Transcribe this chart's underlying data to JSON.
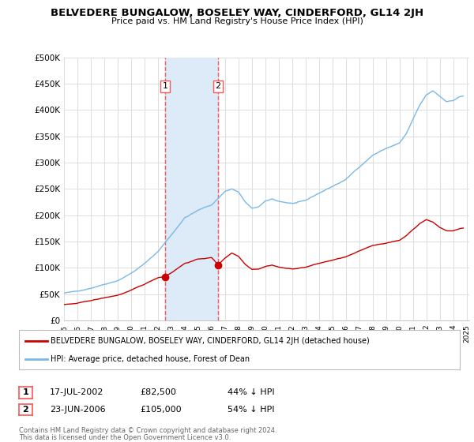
{
  "title": "BELVEDERE BUNGALOW, BOSELEY WAY, CINDERFORD, GL14 2JH",
  "subtitle": "Price paid vs. HM Land Registry's House Price Index (HPI)",
  "ylim": [
    0,
    500000
  ],
  "yticks": [
    0,
    50000,
    100000,
    150000,
    200000,
    250000,
    300000,
    350000,
    400000,
    450000,
    500000
  ],
  "ytick_labels": [
    "£0",
    "£50K",
    "£100K",
    "£150K",
    "£200K",
    "£250K",
    "£300K",
    "£350K",
    "£400K",
    "£450K",
    "£500K"
  ],
  "background_color": "#ffffff",
  "plot_bg_color": "#ffffff",
  "grid_color": "#dddddd",
  "hpi_color": "#7ab8e8",
  "price_color": "#cc0000",
  "highlight_box_color": "#ddeaf7",
  "vline_color": "#ff5555",
  "sale1_date_num": 2002.54,
  "sale1_price": 82500,
  "sale2_date_num": 2006.48,
  "sale2_price": 105000,
  "sale1_date_str": "17-JUL-2002",
  "sale1_price_str": "£82,500",
  "sale1_hpi_str": "44% ↓ HPI",
  "sale2_date_str": "23-JUN-2006",
  "sale2_price_str": "£105,000",
  "sale2_hpi_str": "54% ↓ HPI",
  "legend_house_label": "BELVEDERE BUNGALOW, BOSELEY WAY, CINDERFORD, GL14 2JH (detached house)",
  "legend_hpi_label": "HPI: Average price, detached house, Forest of Dean",
  "footer1": "Contains HM Land Registry data © Crown copyright and database right 2024.",
  "footer2": "This data is licensed under the Open Government Licence v3.0."
}
